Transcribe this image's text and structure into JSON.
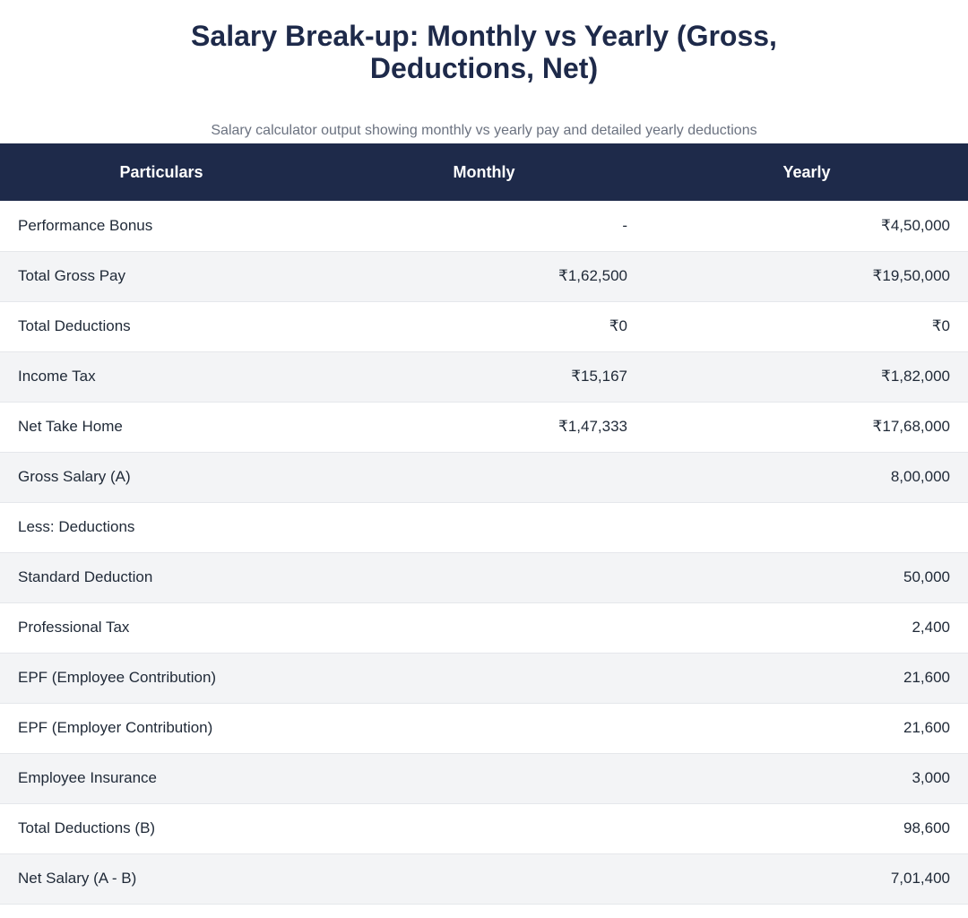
{
  "title": {
    "line1": "Salary Break-up: Monthly vs Yearly (Gross,",
    "line2": "Deductions, Net)"
  },
  "subtitle": "Salary calculator output showing monthly vs yearly pay and detailed yearly deductions",
  "table": {
    "headers": [
      "Particulars",
      "Monthly",
      "Yearly"
    ],
    "rows": [
      {
        "particular": "Performance Bonus",
        "monthly": "-",
        "yearly": "₹4,50,000"
      },
      {
        "particular": "Total Gross Pay",
        "monthly": "₹1,62,500",
        "yearly": "₹19,50,000"
      },
      {
        "particular": "Total Deductions",
        "monthly": "₹0",
        "yearly": "₹0"
      },
      {
        "particular": "Income Tax",
        "monthly": "₹15,167",
        "yearly": "₹1,82,000"
      },
      {
        "particular": "Net Take Home",
        "monthly": "₹1,47,333",
        "yearly": "₹17,68,000"
      },
      {
        "particular": "Gross Salary (A)",
        "monthly": "",
        "yearly": "8,00,000"
      },
      {
        "particular": "Less: Deductions",
        "monthly": "",
        "yearly": ""
      },
      {
        "particular": "Standard Deduction",
        "monthly": "",
        "yearly": "50,000"
      },
      {
        "particular": "Professional Tax",
        "monthly": "",
        "yearly": "2,400"
      },
      {
        "particular": "EPF (Employee Contribution)",
        "monthly": "",
        "yearly": "21,600"
      },
      {
        "particular": "EPF (Employer Contribution)",
        "monthly": "",
        "yearly": "21,600"
      },
      {
        "particular": "Employee Insurance",
        "monthly": "",
        "yearly": "3,000"
      },
      {
        "particular": "Total Deductions (B)",
        "monthly": "",
        "yearly": "98,600"
      },
      {
        "particular": "Net Salary (A - B)",
        "monthly": "",
        "yearly": "7,01,400"
      }
    ]
  },
  "colors": {
    "header_bg": "#1e2a4a",
    "title_text": "#1e2a4a",
    "subtitle_text": "#6b7280",
    "row_alt_bg": "#f3f4f6"
  }
}
